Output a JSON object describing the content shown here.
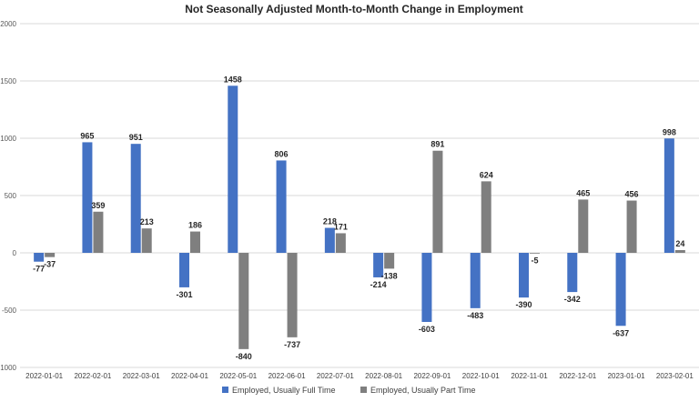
{
  "chart_data": {
    "type": "bar",
    "title": "Not Seasonally Adjusted Month-to-Month Change in Employment",
    "xlabel": "",
    "ylabel": "",
    "ylim": [
      -1000,
      2000
    ],
    "yticks": [
      -1000,
      -500,
      0,
      500,
      1000,
      1500,
      2000
    ],
    "ytick_labels": [
      "-1000",
      "-500",
      "0",
      "500",
      "1000",
      "1500",
      "2000"
    ],
    "grid": true,
    "legend_position": "bottom",
    "categories": [
      "2022-01-01",
      "2022-02-01",
      "2022-03-01",
      "2022-04-01",
      "2022-05-01",
      "2022-06-01",
      "2022-07-01",
      "2022-08-01",
      "2022-09-01",
      "2022-10-01",
      "2022-11-01",
      "2022-12-01",
      "2023-01-01",
      "2023-02-01"
    ],
    "series": [
      {
        "name": "Employed, Usually Full Time",
        "color": "#4472c4",
        "values": [
          -77,
          965,
          951,
          -301,
          1458,
          806,
          218,
          -214,
          -603,
          -483,
          -390,
          -342,
          -637,
          998
        ],
        "labels": [
          "-77",
          "965",
          "951",
          "-301",
          "1458",
          "806",
          "218",
          "-214",
          "-603",
          "-483",
          "-390",
          "-342",
          "-637",
          "998"
        ]
      },
      {
        "name": "Employed, Usually Part Time",
        "color": "#7f7f7f",
        "values": [
          -37,
          359,
          213,
          186,
          -840,
          -737,
          171,
          -138,
          891,
          624,
          -5,
          465,
          456,
          24
        ],
        "labels": [
          "-37",
          "359",
          "213",
          "186",
          "-840",
          "-737",
          "171",
          "-138",
          "891",
          "624",
          "-5",
          "465",
          "456",
          "24"
        ]
      }
    ]
  }
}
